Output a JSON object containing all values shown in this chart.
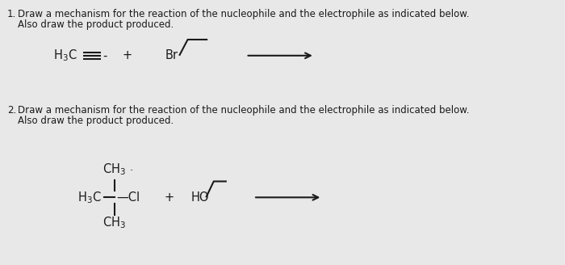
{
  "bg_color": "#e8e8e8",
  "text_color": "#1a1a1a",
  "q1_label": "1.",
  "q1_line1": "Draw a mechanism for the reaction of the nucleophile and the electrophile as indicated below.",
  "q1_line2": "Also draw the product produced.",
  "q2_label": "2.",
  "q2_line1": "Draw a mechanism for the reaction of the nucleophile and the electrophile as indicated below.",
  "q2_line2": "Also draw the product produced.",
  "fontsize_text": 8.5,
  "fontsize_chem": 10.5,
  "fontsize_sub": 8.5
}
